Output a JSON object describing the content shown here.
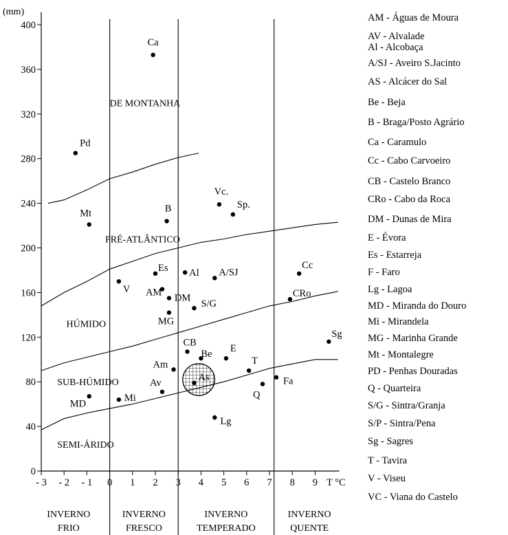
{
  "chart_data": {
    "type": "scatter",
    "y_unit": "(mm)",
    "x_unit": "T °C",
    "xlim": [
      -3,
      10
    ],
    "ylim": [
      0,
      410
    ],
    "x_ticks": [
      {
        "value": -3,
        "label": "- 3"
      },
      {
        "value": -2,
        "label": "- 2"
      },
      {
        "value": -1,
        "label": "- 1"
      },
      {
        "value": 0,
        "label": "0"
      },
      {
        "value": 1,
        "label": "1"
      },
      {
        "value": 2,
        "label": "2"
      },
      {
        "value": 3,
        "label": "3"
      },
      {
        "value": 4,
        "label": "4"
      },
      {
        "value": 5,
        "label": "5"
      },
      {
        "value": 6,
        "label": "6"
      },
      {
        "value": 7,
        "label": "7"
      },
      {
        "value": 8,
        "label": "8"
      },
      {
        "value": 9,
        "label": "9"
      }
    ],
    "y_ticks": [
      0,
      40,
      80,
      120,
      160,
      200,
      240,
      280,
      320,
      360,
      400
    ],
    "points": [
      {
        "label": "Ca",
        "x": 1.9,
        "y": 373
      },
      {
        "label": "Pd",
        "x": -1.5,
        "y": 285
      },
      {
        "label": "Mt",
        "x": -0.9,
        "y": 221
      },
      {
        "label": "B",
        "x": 2.5,
        "y": 224
      },
      {
        "label": "Vc.",
        "x": 4.8,
        "y": 239
      },
      {
        "label": "Sp.",
        "x": 5.4,
        "y": 230
      },
      {
        "label": "Es",
        "x": 2.0,
        "y": 177
      },
      {
        "label": "Al",
        "x": 3.3,
        "y": 178
      },
      {
        "label": "A/SJ",
        "x": 4.6,
        "y": 173
      },
      {
        "label": "Cc",
        "x": 8.3,
        "y": 177
      },
      {
        "label": "V",
        "x": 0.4,
        "y": 170
      },
      {
        "label": "AM",
        "x": 2.3,
        "y": 163
      },
      {
        "label": "DM",
        "x": 2.6,
        "y": 155
      },
      {
        "label": "CRo",
        "x": 7.9,
        "y": 154
      },
      {
        "label": "S/G",
        "x": 3.7,
        "y": 146
      },
      {
        "label": "MG",
        "x": 2.6,
        "y": 142
      },
      {
        "label": "Sg",
        "x": 9.6,
        "y": 116
      },
      {
        "label": "CB",
        "x": 3.4,
        "y": 107
      },
      {
        "label": "Be",
        "x": 4.0,
        "y": 101
      },
      {
        "label": "E",
        "x": 5.1,
        "y": 101
      },
      {
        "label": "Am",
        "x": 2.8,
        "y": 91
      },
      {
        "label": "T",
        "x": 6.1,
        "y": 90
      },
      {
        "label": "As",
        "x": 3.7,
        "y": 79
      },
      {
        "label": "Fa",
        "x": 7.3,
        "y": 84
      },
      {
        "label": "Q",
        "x": 6.7,
        "y": 78
      },
      {
        "label": "Av",
        "x": 2.3,
        "y": 71
      },
      {
        "label": "MD",
        "x": -0.9,
        "y": 67
      },
      {
        "label": "Mi",
        "x": 0.4,
        "y": 64
      },
      {
        "label": "Lg",
        "x": 4.6,
        "y": 48
      }
    ],
    "boundaries": [
      {
        "name": "montanha",
        "points": [
          [
            -2.7,
            240
          ],
          [
            -2,
            243
          ],
          [
            -1,
            252
          ],
          [
            0,
            262
          ],
          [
            1,
            268
          ],
          [
            2,
            275
          ],
          [
            3,
            281
          ],
          [
            3.9,
            285
          ]
        ]
      },
      {
        "name": "pre-atlantico",
        "points": [
          [
            -3,
            148
          ],
          [
            -2,
            160
          ],
          [
            -1,
            170
          ],
          [
            0,
            181
          ],
          [
            1,
            188
          ],
          [
            2,
            195
          ],
          [
            3,
            200
          ],
          [
            4,
            205
          ],
          [
            5,
            208
          ],
          [
            6,
            212
          ],
          [
            7,
            215
          ],
          [
            8,
            218
          ],
          [
            9,
            221
          ],
          [
            10,
            223
          ]
        ]
      },
      {
        "name": "humido",
        "points": [
          [
            -3,
            90
          ],
          [
            -2,
            97
          ],
          [
            -1,
            102
          ],
          [
            0,
            107
          ],
          [
            1,
            112
          ],
          [
            2,
            118
          ],
          [
            3,
            124
          ],
          [
            4,
            130
          ],
          [
            5,
            136
          ],
          [
            6,
            142
          ],
          [
            7,
            148
          ],
          [
            8,
            152
          ],
          [
            9,
            157
          ],
          [
            10,
            161
          ]
        ]
      },
      {
        "name": "sub-humido",
        "points": [
          [
            -3,
            37
          ],
          [
            -2,
            47
          ],
          [
            -1,
            52
          ],
          [
            0,
            56
          ],
          [
            1,
            60
          ],
          [
            2,
            65
          ],
          [
            3,
            70
          ],
          [
            4,
            75
          ],
          [
            5,
            80
          ],
          [
            6,
            86
          ],
          [
            7,
            92
          ],
          [
            8,
            96
          ],
          [
            9,
            100
          ],
          [
            10,
            100
          ]
        ]
      }
    ],
    "region_labels": [
      {
        "text": "DE MONTANHA",
        "x": 0,
        "y": 327
      },
      {
        "text": "PRÉ-ATLÂNTICO",
        "x": -0.2,
        "y": 205
      },
      {
        "text": "HÚMIDO",
        "x": -1.9,
        "y": 129
      },
      {
        "text": "SUB-HÚMIDO",
        "x": -2.3,
        "y": 77
      },
      {
        "text": "SEMI-ÁRIDO",
        "x": -2.3,
        "y": 21
      }
    ],
    "winter_dividers": [
      0,
      3,
      7.2
    ],
    "winter_categories": [
      {
        "line1": "INVERNO",
        "line2": "FRIO"
      },
      {
        "line1": "INVERNO",
        "line2": "FRESCO"
      },
      {
        "line1": "INVERNO",
        "line2": "TEMPERADO"
      },
      {
        "line1": "INVERNO",
        "line2": "QUENTE"
      }
    ],
    "highlight": {
      "label": "As",
      "x": 3.9,
      "y": 82,
      "r": 1.0,
      "pattern": "grid"
    }
  },
  "legend": [
    "AM - Águas de Moura",
    "AV - Alvalade",
    "Al - Alcobaça",
    "A/SJ - Aveiro S.Jacinto",
    "AS - Alcácer do Sal",
    "Be - Beja",
    "B - Braga/Posto Agrário",
    "Ca - Caramulo",
    "Cc - Cabo Carvoeiro",
    "CB - Castelo Branco",
    "CRo - Cabo da Roca",
    "DM - Dunas de Mira",
    "E - Évora",
    "Es - Estarreja",
    "F - Faro",
    "Lg - Lagoa",
    "MD - Miranda do Douro",
    "Mi - Mirandela",
    "MG - Marinha Grande",
    "Mt - Montalegre",
    "PD - Penhas Douradas",
    "Q - Quarteira",
    "S/G - Sintra/Granja",
    "S/P - Sintra/Pena",
    "Sg - Sagres",
    "T - Tavira",
    "V - Viseu",
    "VC - Viana do Castelo"
  ]
}
